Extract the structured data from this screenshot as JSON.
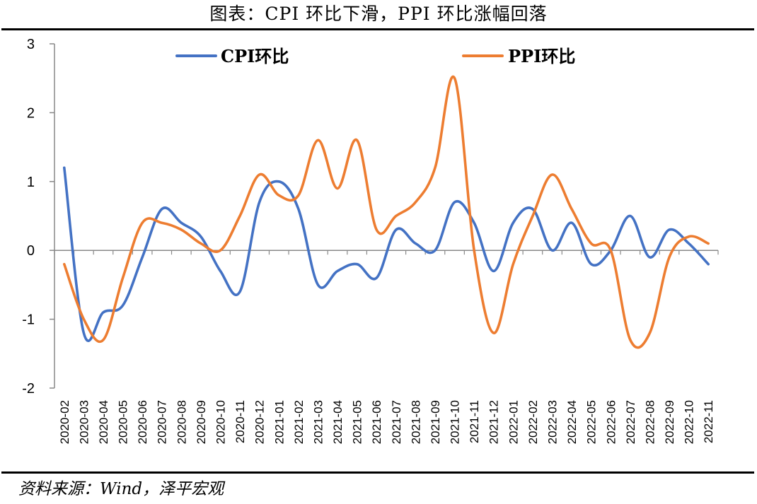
{
  "title": "图表：CPI 环比下滑，PPI 环比涨幅回落",
  "source": "资料来源：Wind，泽平宏观",
  "chart_data": {
    "type": "line",
    "ylim": [
      -2,
      3
    ],
    "yticks": [
      3,
      2,
      1,
      0,
      -1,
      -2
    ],
    "categories": [
      "2020-02",
      "2020-03",
      "2020-04",
      "2020-05",
      "2020-06",
      "2020-07",
      "2020-08",
      "2020-09",
      "2020-10",
      "2020-11",
      "2020-12",
      "2021-01",
      "2021-02",
      "2021-03",
      "2021-04",
      "2021-05",
      "2021-06",
      "2021-07",
      "2021-08",
      "2021-09",
      "2021-10",
      "2021-11",
      "2021-12",
      "2022-01",
      "2022-02",
      "2022-03",
      "2022-04",
      "2022-05",
      "2022-06",
      "2022-07",
      "2022-08",
      "2022-09",
      "2022-10",
      "2022-11"
    ],
    "legend_position": "top",
    "grid": false,
    "series": [
      {
        "name": "CPI环比",
        "color": "#4472C4",
        "values": [
          1.2,
          -1.2,
          -0.9,
          -0.8,
          -0.1,
          0.6,
          0.4,
          0.2,
          -0.3,
          -0.6,
          0.7,
          1.0,
          0.6,
          -0.5,
          -0.3,
          -0.2,
          -0.4,
          0.3,
          0.1,
          0.0,
          0.7,
          0.4,
          -0.3,
          0.4,
          0.6,
          0.0,
          0.4,
          -0.2,
          0.0,
          0.5,
          -0.1,
          0.3,
          0.1,
          -0.2
        ]
      },
      {
        "name": "PPI环比",
        "color": "#ED7D31",
        "values": [
          -0.2,
          -1.0,
          -1.3,
          -0.4,
          0.4,
          0.4,
          0.3,
          0.1,
          0.0,
          0.5,
          1.1,
          0.8,
          0.8,
          1.6,
          0.9,
          1.6,
          0.3,
          0.5,
          0.7,
          1.2,
          2.5,
          0.0,
          -1.2,
          -0.2,
          0.5,
          1.1,
          0.6,
          0.1,
          0.0,
          -1.3,
          -1.2,
          -0.1,
          0.2,
          0.1
        ]
      }
    ]
  }
}
